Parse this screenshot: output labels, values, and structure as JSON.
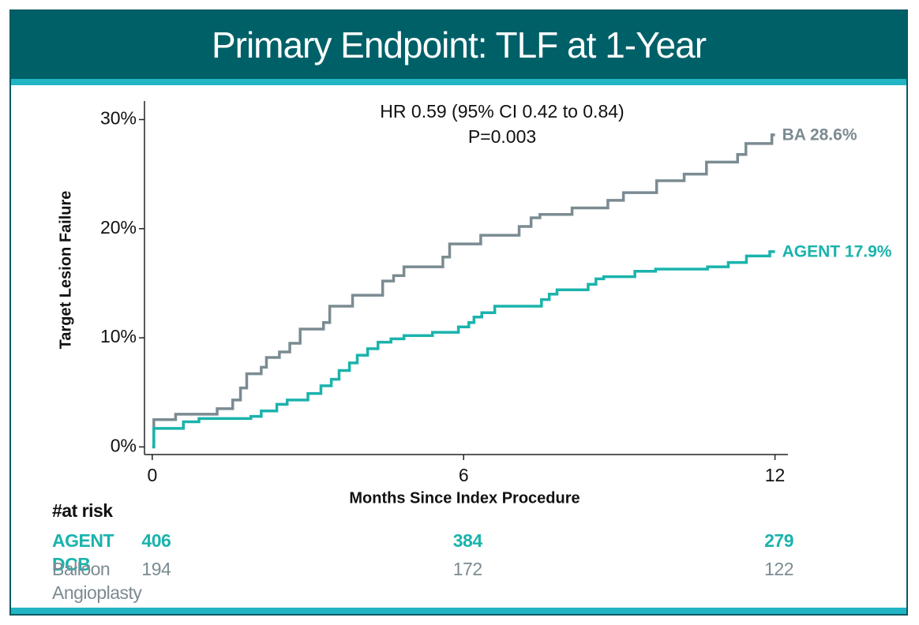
{
  "header": {
    "title": "Primary Endpoint: TLF at 1-Year"
  },
  "chart_data": {
    "type": "step",
    "ylabel": "Target Lesion Failure",
    "xlabel": "Months Since Index Procedure",
    "annotations": [
      "HR 0.59 (95% CI 0.42 to 0.84)",
      "P=0.003"
    ],
    "xlim": [
      -0.15,
      12.25
    ],
    "xticks": [
      0,
      6,
      12
    ],
    "ylim": [
      -0.7,
      31.7
    ],
    "yticks": [
      {
        "value": 0,
        "label": "0%"
      },
      {
        "value": 10,
        "label": "10%"
      },
      {
        "value": 20,
        "label": "20%"
      },
      {
        "value": 30,
        "label": "30%"
      }
    ],
    "series": [
      {
        "name": "BA 28.6%",
        "color": "#7b8b92",
        "x": [
          0,
          0.03,
          0.45,
          1.25,
          1.55,
          1.7,
          1.82,
          2.1,
          2.2,
          2.45,
          2.65,
          2.85,
          3.3,
          3.42,
          3.86,
          4.44,
          4.65,
          4.85,
          5.6,
          5.73,
          6.33,
          7.07,
          7.3,
          7.47,
          8.09,
          8.78,
          9.08,
          9.72,
          10.25,
          10.68,
          11.28,
          11.44,
          11.94,
          12
        ],
        "values": [
          0,
          2.5,
          3.0,
          3.5,
          4.3,
          5.4,
          6.7,
          7.3,
          8.2,
          8.7,
          9.5,
          10.8,
          11.4,
          12.9,
          13.9,
          15.2,
          15.7,
          16.5,
          17.4,
          18.6,
          19.4,
          20.2,
          21.0,
          21.3,
          21.9,
          22.6,
          23.3,
          24.4,
          25.0,
          26.1,
          26.8,
          27.8,
          28.6,
          28.6
        ]
      },
      {
        "name": "AGENT 17.9%",
        "color": "#1ab3ac",
        "x": [
          0,
          0.03,
          0.6,
          0.9,
          1.9,
          2.1,
          2.4,
          2.6,
          3.0,
          3.25,
          3.45,
          3.6,
          3.8,
          3.95,
          4.15,
          4.35,
          4.6,
          4.85,
          5.4,
          5.9,
          6.1,
          6.2,
          6.35,
          6.6,
          7.5,
          7.65,
          7.8,
          8.4,
          8.55,
          8.7,
          9.3,
          9.7,
          10.7,
          11.1,
          11.45,
          11.9,
          12
        ],
        "values": [
          0,
          1.7,
          2.3,
          2.6,
          2.8,
          3.3,
          3.9,
          4.3,
          4.9,
          5.6,
          6.2,
          7.0,
          7.7,
          8.4,
          9.0,
          9.6,
          9.9,
          10.2,
          10.5,
          11.0,
          11.4,
          11.9,
          12.3,
          12.9,
          13.5,
          14.0,
          14.4,
          14.9,
          15.4,
          15.6,
          16.1,
          16.3,
          16.5,
          16.9,
          17.5,
          17.9,
          17.9
        ]
      }
    ],
    "at_risk": {
      "title": "#at risk",
      "rows": [
        {
          "label": "AGENT DCB",
          "color": "#1ab3ac",
          "values": [
            406,
            384,
            279
          ]
        },
        {
          "label": "Balloon Angioplasty",
          "color": "#7b8b92",
          "values": [
            194,
            172,
            122
          ]
        }
      ]
    }
  }
}
